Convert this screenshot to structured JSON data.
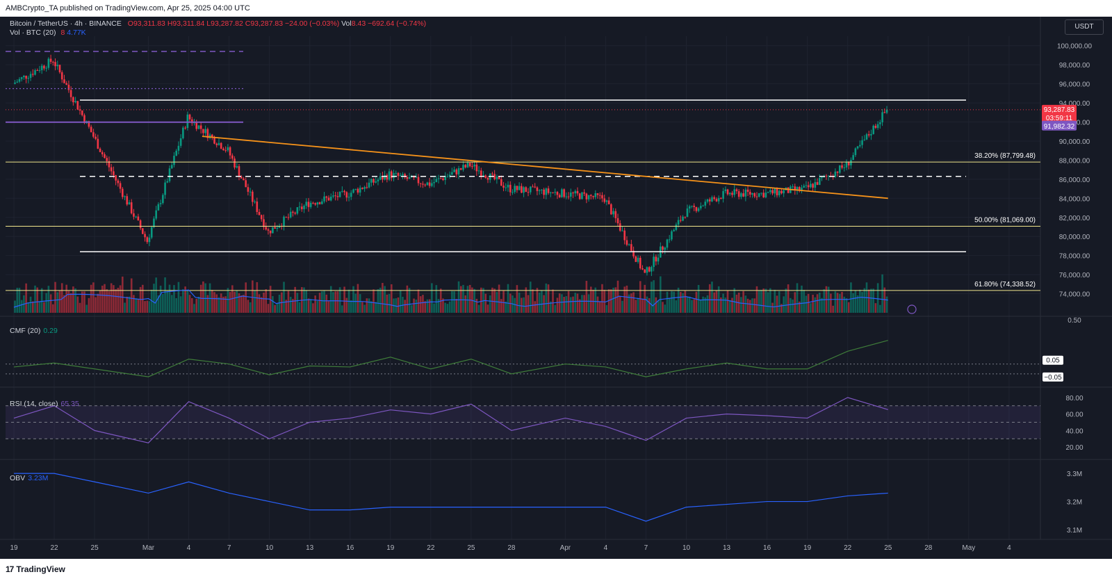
{
  "header": {
    "publisher": "AMBCrypto_TA published on TradingView.com, Apr 25, 2025 04:00 UTC"
  },
  "legend": {
    "symbol": "Bitcoin / TetherUS · 4h · BINANCE",
    "o": "O93,311.83",
    "h": "H93,311.84",
    "l": "L93,287.82",
    "c": "C93,287.83",
    "change": "−24.00 (−0.03%)",
    "vol_label": "Vol",
    "vol_value": "8.43",
    "vol_change": "−692.64 (−0.74%)",
    "vol_btc": "Vol · BTC (20)",
    "vol_btc_1": "8",
    "vol_btc_2": "4.77K"
  },
  "currency_button": "USDT",
  "price_badges": {
    "last": "93,287.83",
    "countdown": "03:59:11",
    "level": "91,982.32"
  },
  "fib_labels": [
    "38.20% (87,799.48)",
    "50.00% (81,069.00)",
    "61.80% (74,338.52)"
  ],
  "price_axis": [
    "100,000.00",
    "98,000.00",
    "96,000.00",
    "94,000.00",
    "92,000.00",
    "90,000.00",
    "88,000.00",
    "86,000.00",
    "84,000.00",
    "82,000.00",
    "80,000.00",
    "78,000.00",
    "76,000.00",
    "74,000.00"
  ],
  "cmf": {
    "label": "CMF (20)",
    "value": "0.29",
    "axis": [
      "0.50"
    ],
    "badges": [
      "0.05",
      "−0.05"
    ]
  },
  "rsi": {
    "label": "RSI (14, close)",
    "value": "65.35",
    "axis": [
      "80.00",
      "60.00",
      "40.00",
      "20.00"
    ]
  },
  "obv": {
    "label": "OBV",
    "value": "3.23M",
    "axis": [
      "3.3M",
      "3.2M",
      "3.1M"
    ]
  },
  "time_axis": [
    "19",
    "22",
    "25",
    "Mar",
    "4",
    "7",
    "10",
    "13",
    "16",
    "19",
    "22",
    "25",
    "28",
    "Apr",
    "4",
    "7",
    "10",
    "13",
    "16",
    "19",
    "22",
    "25",
    "28",
    "May",
    "4"
  ],
  "footer": {
    "brand": "TradingView"
  },
  "colors": {
    "bg": "#161a25",
    "up": "#089981",
    "down": "#f23645",
    "orange": "#f7931a",
    "fib": "#f0e68c",
    "purple": "#7e57c2",
    "blue": "#2962ff",
    "cmf": "#3f7d3a",
    "rsi": "#7e57c2",
    "obv": "#2962ff"
  },
  "chart_data": {
    "type": "line",
    "title": "Bitcoin / TetherUS · 4h · BINANCE",
    "x": [
      "Feb 19",
      "Feb 22",
      "Feb 25",
      "Mar 1",
      "Mar 4",
      "Mar 7",
      "Mar 10",
      "Mar 13",
      "Mar 16",
      "Mar 19",
      "Mar 22",
      "Mar 25",
      "Mar 28",
      "Apr 1",
      "Apr 4",
      "Apr 7",
      "Apr 10",
      "Apr 13",
      "Apr 16",
      "Apr 19",
      "Apr 22",
      "Apr 25"
    ],
    "series": [
      {
        "name": "Bitcoin / TetherUS",
        "values": [
          96000,
          98500,
          90500,
          79500,
          92500,
          89000,
          80500,
          83500,
          84500,
          86500,
          85500,
          87500,
          85000,
          84500,
          84000,
          76000,
          82500,
          84500,
          84500,
          85000,
          87500,
          93287.83
        ]
      }
    ],
    "ylim": [
      72000,
      101000
    ],
    "levels": {
      "resistance": 94300,
      "support": 78400,
      "dashed": 86300,
      "purple": 91982.32,
      "fib_38_2": 87799.48,
      "fib_50": 81069.0,
      "fib_61_8": 74338.52
    },
    "trendline": {
      "from": [
        "Mar 5",
        90500
      ],
      "to": [
        "Apr 25",
        84000
      ]
    },
    "indicators": {
      "cmf_20": [
        0.02,
        0.06,
        0.0,
        -0.08,
        0.1,
        0.05,
        -0.06,
        0.03,
        0.02,
        0.12,
        0.0,
        0.1,
        -0.05,
        0.05,
        0.02,
        -0.08,
        0.0,
        0.06,
        0.0,
        0.0,
        0.18,
        0.29
      ],
      "rsi_14": [
        55,
        70,
        40,
        25,
        75,
        55,
        30,
        50,
        55,
        65,
        60,
        72,
        40,
        55,
        45,
        28,
        55,
        60,
        58,
        55,
        80,
        65.35
      ],
      "obv_millions": [
        3.3,
        3.3,
        3.27,
        3.23,
        3.27,
        3.23,
        3.2,
        3.17,
        3.17,
        3.18,
        3.18,
        3.18,
        3.18,
        3.18,
        3.18,
        3.13,
        3.18,
        3.19,
        3.2,
        3.2,
        3.22,
        3.23
      ]
    }
  }
}
